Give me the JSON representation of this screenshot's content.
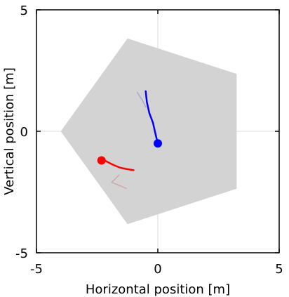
{
  "chart_data": {
    "type": "scatter",
    "title": "",
    "xlabel": "Horizontal position [m]",
    "ylabel": "Vertical position [m]",
    "xlim": [
      -5,
      5
    ],
    "ylim": [
      -5,
      5
    ],
    "xticks": [
      -5,
      0,
      5
    ],
    "yticks": [
      -5,
      0,
      5
    ],
    "xtick_labels": [
      "-5",
      "0",
      "5"
    ],
    "ytick_labels": [
      "-5",
      "0",
      "5"
    ],
    "grid": "zero-lines",
    "region": {
      "shape": "pentagon",
      "color": "#d3d3d3",
      "vertices": [
        [
          -1.25,
          3.82
        ],
        [
          3.25,
          2.36
        ],
        [
          3.25,
          -2.36
        ],
        [
          -1.25,
          -3.82
        ],
        [
          -4.0,
          0.0
        ]
      ]
    },
    "series": [
      {
        "color": "#0000ff",
        "trail_color": "#aaaacc",
        "trail": [
          [
            -0.85,
            1.6
          ],
          [
            -0.65,
            1.3
          ],
          [
            -0.5,
            1.0
          ]
        ],
        "path": [
          [
            -0.5,
            1.65
          ],
          [
            -0.45,
            1.2
          ],
          [
            -0.35,
            0.75
          ],
          [
            -0.2,
            0.35
          ],
          [
            -0.12,
            0.0
          ],
          [
            -0.05,
            -0.3
          ],
          [
            0.0,
            -0.5
          ]
        ],
        "marker": [
          0.0,
          -0.5
        ]
      },
      {
        "color": "#ff0000",
        "trail_color": "#ccaaaa",
        "trail": [
          [
            -1.6,
            -1.8
          ],
          [
            -1.9,
            -2.1
          ],
          [
            -1.3,
            -2.35
          ]
        ],
        "path": [
          [
            -1.0,
            -1.6
          ],
          [
            -1.3,
            -1.55
          ],
          [
            -1.55,
            -1.5
          ],
          [
            -1.8,
            -1.4
          ],
          [
            -2.0,
            -1.3
          ],
          [
            -2.15,
            -1.22
          ],
          [
            -2.32,
            -1.2
          ]
        ],
        "marker": [
          -2.32,
          -1.2
        ]
      }
    ]
  }
}
